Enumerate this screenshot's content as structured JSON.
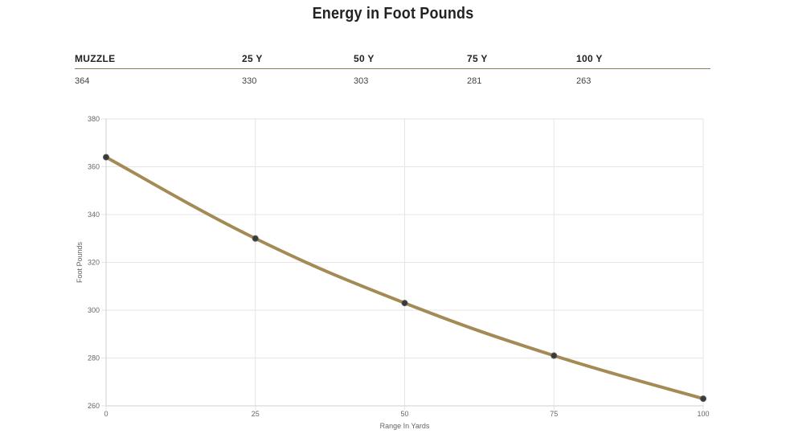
{
  "page": {
    "title": "Energy in Foot Pounds"
  },
  "table": {
    "headers": [
      "MUZZLE",
      "25 Y",
      "50 Y",
      "75 Y",
      "100 Y"
    ],
    "values": [
      "364",
      "330",
      "303",
      "281",
      "263"
    ]
  },
  "chart_data": {
    "type": "line",
    "title": "",
    "xlabel": "Range In Yards",
    "ylabel": "Foot Pounds",
    "x": [
      0,
      25,
      50,
      75,
      100
    ],
    "series": [
      {
        "name": "Energy",
        "values": [
          364,
          330,
          303,
          281,
          263
        ]
      }
    ],
    "xlim": [
      0,
      100
    ],
    "ylim": [
      260,
      380
    ],
    "x_ticks": [
      0,
      25,
      50,
      75,
      100
    ],
    "y_ticks": [
      260,
      280,
      300,
      320,
      340,
      360,
      380
    ],
    "grid": true,
    "colors": {
      "line": "#a48b55",
      "point": "#3a3a3a",
      "grid": "#e6e6e6",
      "axis": "#cfcfcf",
      "text": "#666666"
    }
  }
}
